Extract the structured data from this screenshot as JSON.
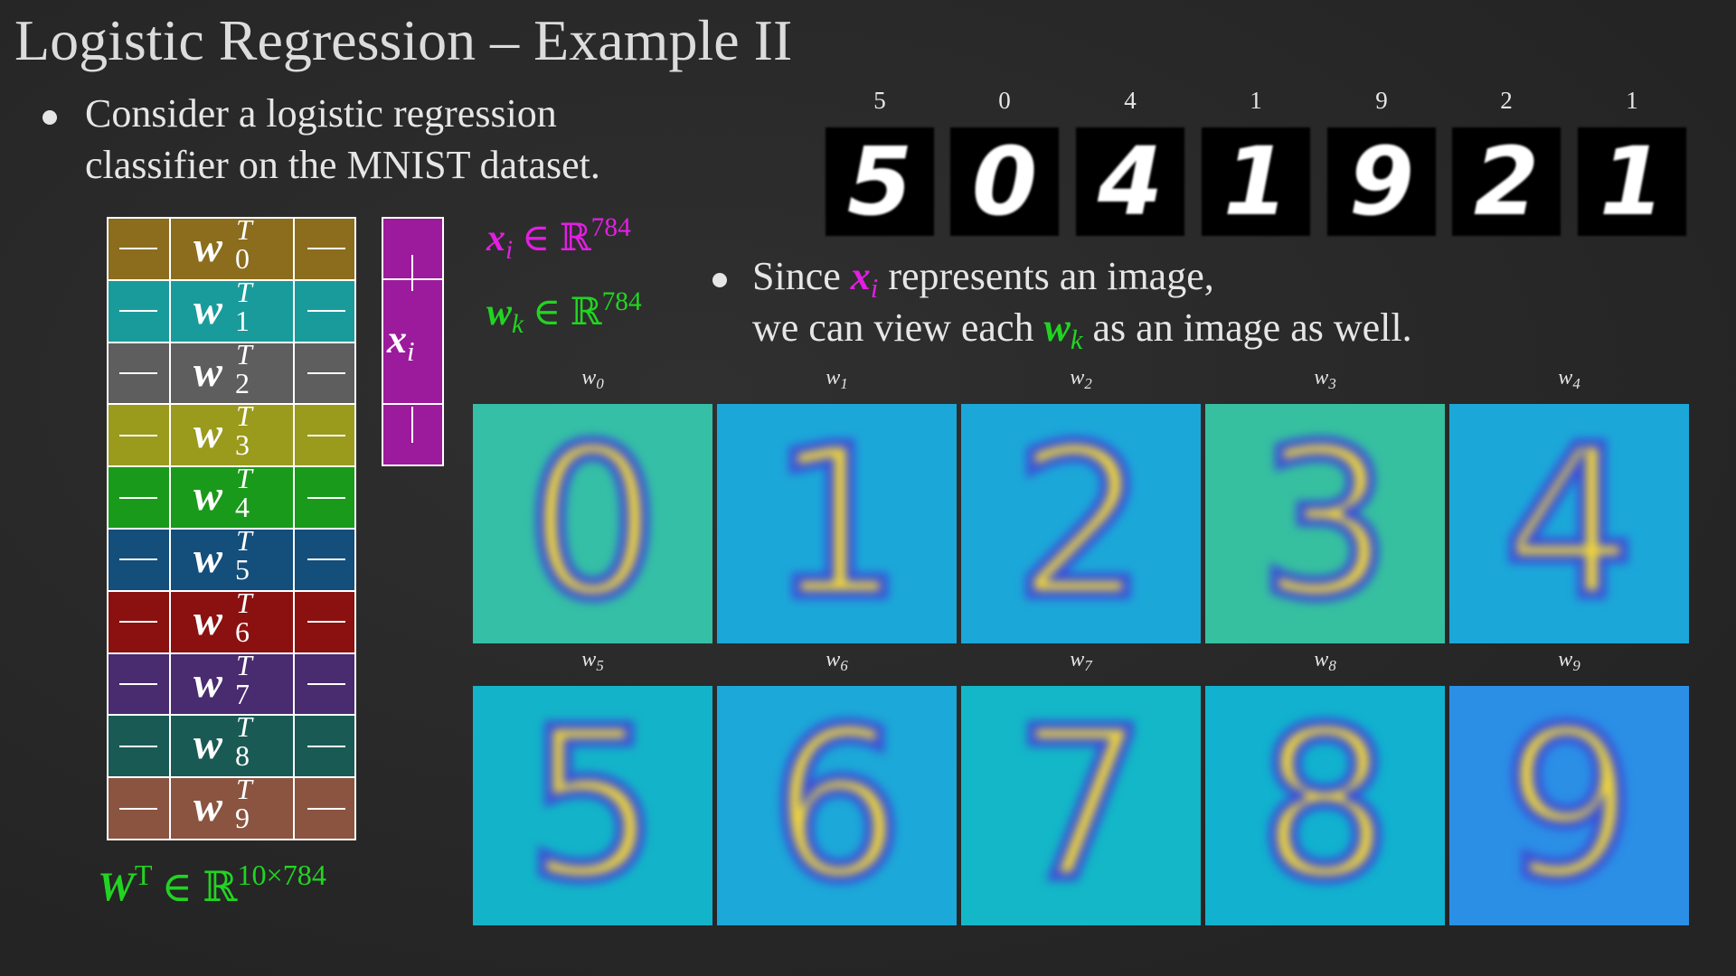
{
  "title": "Logistic Regression – Example II",
  "bullet1": [
    "Consider a logistic regression",
    "classifier on the MNIST dataset."
  ],
  "bullet2": [
    [
      "Since ",
      {
        "var": "x",
        "sub": "i",
        "color": "#e21fe2"
      },
      " represents an image,"
    ],
    [
      "we can view each ",
      {
        "var": "w",
        "sub": "k",
        "color": "#22d422"
      },
      " as an image as well."
    ]
  ],
  "samples": [
    "5",
    "0",
    "4",
    "1",
    "9",
    "2",
    "1"
  ],
  "matrix": {
    "symbol": "w",
    "superscript": "T",
    "rows": [
      {
        "index": "0",
        "color": "#8b6d1d"
      },
      {
        "index": "1",
        "color": "#1a9b9b"
      },
      {
        "index": "2",
        "color": "#5e5e5e"
      },
      {
        "index": "3",
        "color": "#9a9a1c"
      },
      {
        "index": "4",
        "color": "#1a9a1a"
      },
      {
        "index": "5",
        "color": "#144e7a"
      },
      {
        "index": "6",
        "color": "#8b1111"
      },
      {
        "index": "7",
        "color": "#492b6f"
      },
      {
        "index": "8",
        "color": "#1a5a55"
      },
      {
        "index": "9",
        "color": "#8a5441"
      }
    ]
  },
  "vector": {
    "symbol": "x",
    "sub": "i",
    "color": "#9c1a9c"
  },
  "formulas": [
    {
      "var": "x",
      "sub": "i",
      "rel": "∈ ℝ",
      "sup": "784",
      "color": "#e21fe2"
    },
    {
      "var": "w",
      "sub": "k",
      "rel": "∈ ℝ",
      "sup": "784",
      "color": "#22d422"
    },
    {
      "var": "W",
      "var_sup": "T",
      "rel": "∈ ℝ",
      "sup": "10×784",
      "color": "#22d422"
    }
  ],
  "panels": {
    "symbol": "w",
    "items": [
      {
        "index": "0",
        "color": "#35bfa6"
      },
      {
        "index": "1",
        "color": "#1ca7d9"
      },
      {
        "index": "2",
        "color": "#1ca7d9"
      },
      {
        "index": "3",
        "color": "#36c0a0"
      },
      {
        "index": "4",
        "color": "#1ca7d9"
      },
      {
        "index": "5",
        "color": "#13b4c9"
      },
      {
        "index": "6",
        "color": "#1ca8d8"
      },
      {
        "index": "7",
        "color": "#13b7c7"
      },
      {
        "index": "8",
        "color": "#11b1cf"
      },
      {
        "index": "9",
        "color": "#2b8fe6"
      }
    ]
  }
}
